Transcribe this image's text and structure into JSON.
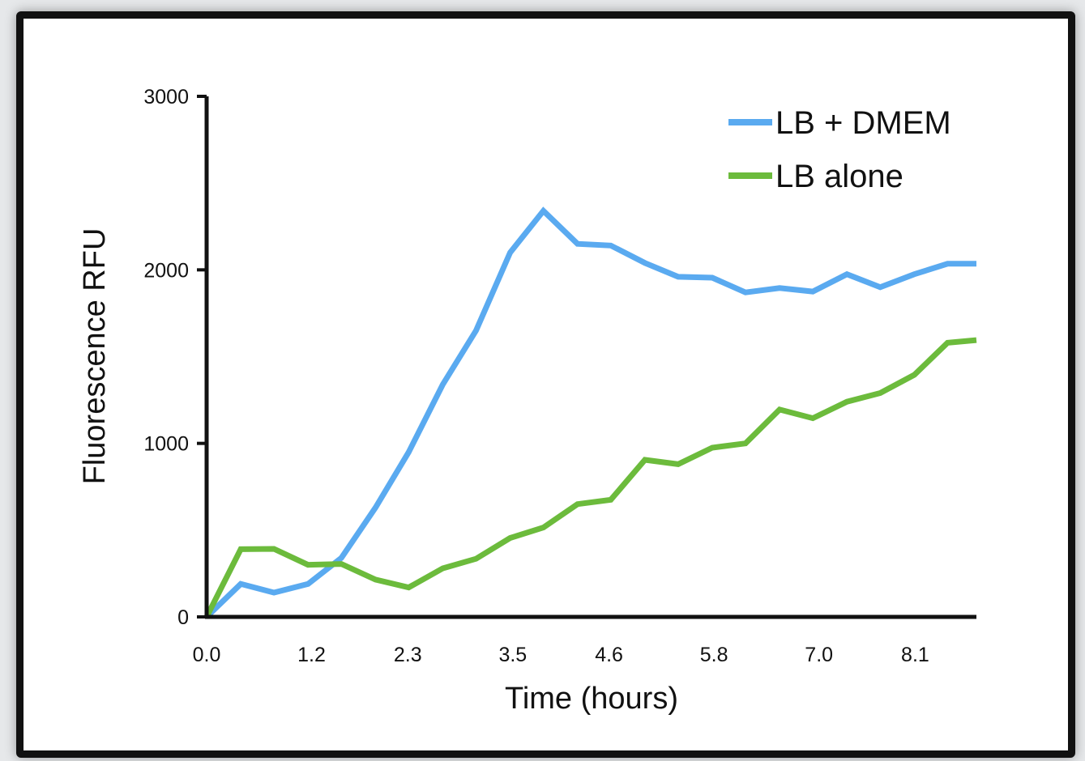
{
  "chart_data": {
    "type": "line",
    "title": "",
    "xlabel": "Time (hours)",
    "ylabel": "Fluorescence RFU",
    "ylim": [
      0,
      3000
    ],
    "xlim": [
      0,
      8.8
    ],
    "grid": false,
    "legend_position": "top-right",
    "x_tick_labels": [
      "0.0",
      "1.2",
      "2.3",
      "3.5",
      "4.6",
      "5.8",
      "7.0",
      "8.1"
    ],
    "y_tick_labels": [
      "0",
      "1000",
      "2000",
      "3000"
    ],
    "x": [
      0.0,
      0.39,
      0.77,
      1.16,
      1.54,
      1.93,
      2.31,
      2.7,
      3.08,
      3.47,
      3.85,
      4.24,
      4.62,
      5.01,
      5.39,
      5.78,
      6.16,
      6.55,
      6.93,
      7.32,
      7.7,
      8.09,
      8.47,
      8.8
    ],
    "series": [
      {
        "name": "LB + DMEM",
        "color": "#5aaaf0",
        "values": [
          0,
          190,
          140,
          190,
          340,
          630,
          950,
          1340,
          1650,
          2100,
          2340,
          2150,
          2140,
          2040,
          1960,
          1955,
          1870,
          1895,
          1875,
          1975,
          1900,
          1975,
          2035,
          2035
        ]
      },
      {
        "name": "LB alone",
        "color": "#6cbb3c",
        "values": [
          0,
          390,
          392,
          300,
          305,
          215,
          170,
          280,
          335,
          455,
          515,
          650,
          675,
          905,
          880,
          975,
          1000,
          1195,
          1145,
          1240,
          1290,
          1395,
          1580,
          1595
        ]
      }
    ]
  }
}
